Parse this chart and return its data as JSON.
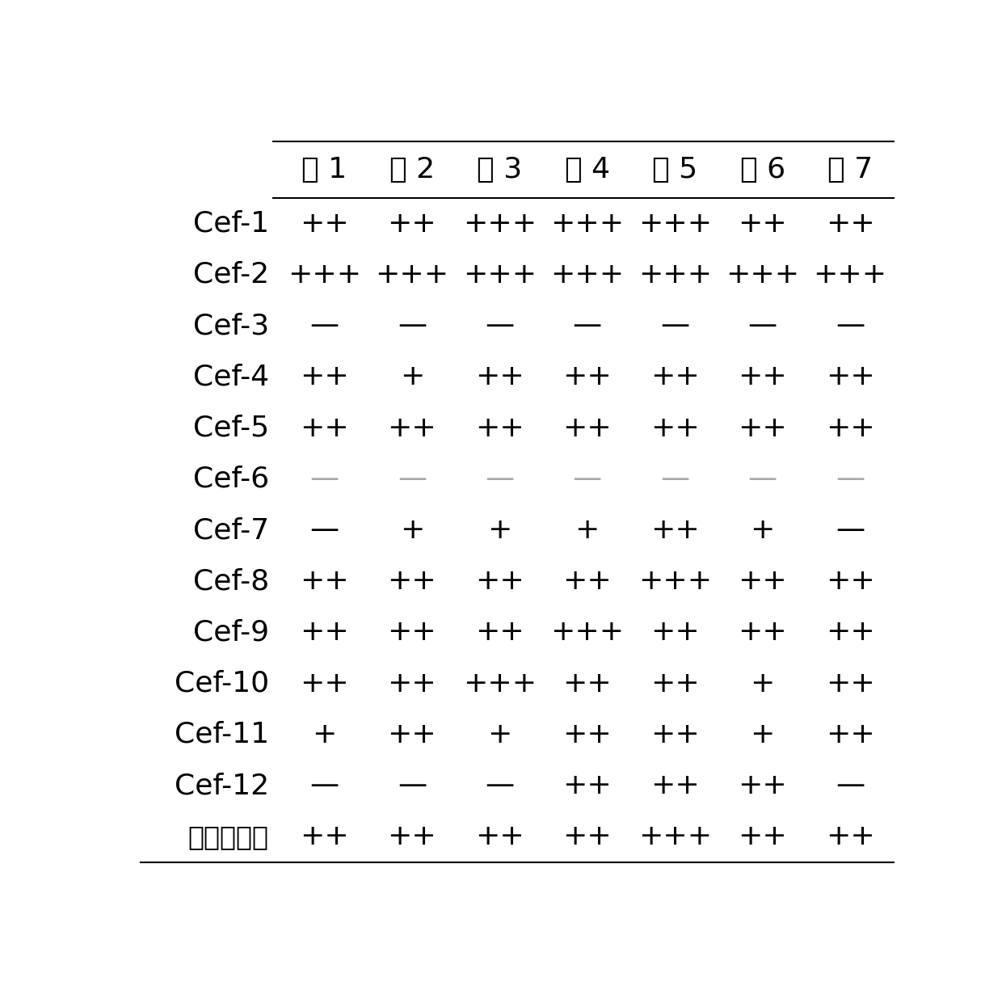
{
  "columns": [
    "菌 1",
    "菌 2",
    "菌 3",
    "菌 4",
    "菌 5",
    "菌 6",
    "菌 7"
  ],
  "rows": [
    {
      "label": "Cef-1",
      "values": [
        "++",
        "++",
        "+++",
        "+++",
        "+++",
        "++",
        "++"
      ],
      "light_dash": false
    },
    {
      "label": "Cef-2",
      "values": [
        "+++",
        "+++",
        "+++",
        "+++",
        "+++",
        "+++",
        "+++"
      ],
      "light_dash": false
    },
    {
      "label": "Cef-3",
      "values": [
        "—",
        "—",
        "—",
        "—",
        "—",
        "—",
        "—"
      ],
      "light_dash": false
    },
    {
      "label": "Cef-4",
      "values": [
        "++",
        "+",
        "++",
        "++",
        "++",
        "++",
        "++"
      ],
      "light_dash": false
    },
    {
      "label": "Cef-5",
      "values": [
        "++",
        "++",
        "++",
        "++",
        "++",
        "++",
        "++"
      ],
      "light_dash": false
    },
    {
      "label": "Cef-6",
      "values": [
        "—",
        "—",
        "—",
        "—",
        "—",
        "—",
        "—"
      ],
      "light_dash": true
    },
    {
      "label": "Cef-7",
      "values": [
        "—",
        "+",
        "+",
        "+",
        "++",
        "+",
        "—"
      ],
      "light_dash": false
    },
    {
      "label": "Cef-8",
      "values": [
        "++",
        "++",
        "++",
        "++",
        "+++",
        "++",
        "++"
      ],
      "light_dash": false
    },
    {
      "label": "Cef-9",
      "values": [
        "++",
        "++",
        "++",
        "+++",
        "++",
        "++",
        "++"
      ],
      "light_dash": false
    },
    {
      "label": "Cef-10",
      "values": [
        "++",
        "++",
        "+++",
        "++",
        "++",
        "+",
        "++"
      ],
      "light_dash": false
    },
    {
      "label": "Cef-11",
      "values": [
        "+",
        "++",
        "+",
        "++",
        "++",
        "+",
        "++"
      ],
      "light_dash": false
    },
    {
      "label": "Cef-12",
      "values": [
        "—",
        "—",
        "—",
        "++",
        "++",
        "++",
        "—"
      ],
      "light_dash": false
    },
    {
      "label": "硬酸链霉素",
      "values": [
        "++",
        "++",
        "++",
        "++",
        "+++",
        "++",
        "++"
      ],
      "light_dash": false
    }
  ],
  "background_color": "#ffffff",
  "text_color": "#000000",
  "light_dash_color": "#aaaaaa",
  "line_color": "#000000",
  "font_size_header": 26,
  "font_size_row_label": 26,
  "font_size_cell": 26,
  "font_size_last_label": 24
}
